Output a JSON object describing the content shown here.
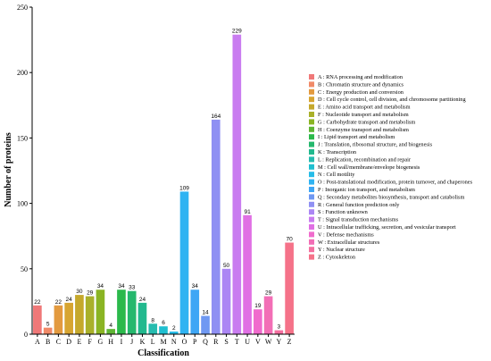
{
  "chart_data": {
    "type": "bar",
    "title": "",
    "xlabel": "Classification",
    "ylabel": "Number of proteins",
    "ylim": [
      0,
      250
    ],
    "yticks": [
      0,
      50,
      100,
      150,
      200,
      250
    ],
    "grid": false,
    "legend_position": "right",
    "categories": [
      "A",
      "B",
      "C",
      "D",
      "E",
      "F",
      "G",
      "H",
      "I",
      "J",
      "K",
      "L",
      "M",
      "N",
      "O",
      "P",
      "Q",
      "R",
      "S",
      "T",
      "U",
      "V",
      "W",
      "Y",
      "Z"
    ],
    "values": [
      22,
      5,
      22,
      24,
      30,
      29,
      34,
      4,
      34,
      33,
      24,
      8,
      6,
      2,
      109,
      34,
      14,
      164,
      50,
      229,
      91,
      19,
      29,
      3,
      70
    ],
    "colors": [
      "#f07878",
      "#f08a68",
      "#e39a3f",
      "#d7a531",
      "#c5a82c",
      "#a9b02a",
      "#8ab423",
      "#5fb535",
      "#2bb94b",
      "#25b86d",
      "#22b98e",
      "#26bcaf",
      "#1fbfd0",
      "#25bce8",
      "#2fb3f2",
      "#3ea6f5",
      "#6f98f2",
      "#8f90f3",
      "#ab86f4",
      "#c97cf0",
      "#e070e4",
      "#f06bcd",
      "#f26eb6",
      "#f470a0",
      "#f57289"
    ],
    "legend": [
      "A : RNA processing and modification",
      "B : Chromatin structure and dynamics",
      "C : Energy production and conversion",
      "D : Cell cycle control, cell division, and chromosome partitioning",
      "E : Amino acid transport and metabolism",
      "F : Nucleotide transport and metabolism",
      "G : Carbohydrate transport and metabolism",
      "H : Coenzyme transport and metabolism",
      "I : Lipid transport and metabolism",
      "J : Translation, ribosomal structure, and biogenesis",
      "K : Transcription",
      "L : Replication, recombination and repair",
      "M : Cell wall/membrane/envelope biogenesis",
      "N : Cell motility",
      "O : Post-translational modification, protein turnover, and chaperones",
      "P : Inorganic ion transport, and metabolism",
      "Q : Secondary metabolites biosynthesis, transport and catabolism",
      "R : General function prediction only",
      "S : Function unknown",
      "T : Signal transduction mechanisms",
      "U : Intracellular trafficking, secretion, and vesicular transport",
      "V : Defense mechanisms",
      "W : Extracellular structures",
      "Y : Nuclear structure",
      "Z : Cytoskeleton"
    ]
  }
}
